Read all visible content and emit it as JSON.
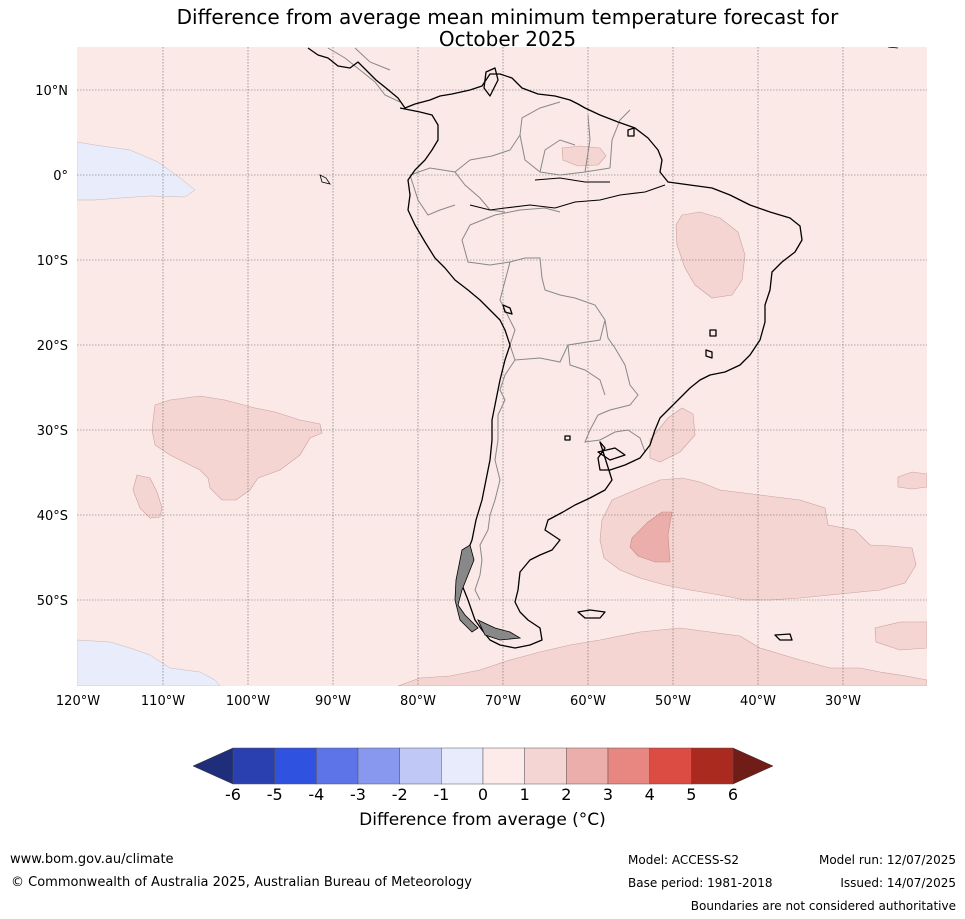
{
  "title": {
    "line1": "Difference from average mean minimum temperature forecast for",
    "line2": "October 2025"
  },
  "map": {
    "lat_labels": [
      "10°N",
      "0°",
      "10°S",
      "20°S",
      "30°S",
      "40°S",
      "50°S"
    ],
    "lon_labels": [
      "120°W",
      "110°W",
      "100°W",
      "90°W",
      "80°W",
      "70°W",
      "60°W",
      "50°W",
      "40°W",
      "30°W"
    ],
    "background_color": "#fbe9e7",
    "anomaly_regions": [
      {
        "name": "Eastern Brazil warm area",
        "category": "1 to 2",
        "color": "#f4d5d2"
      },
      {
        "name": "Southern Atlantic warm area",
        "category": "1 to 2",
        "color": "#f4d5d2"
      },
      {
        "name": "Southern Atlantic core",
        "category": "2 to 3",
        "color": "#ebaeaa"
      },
      {
        "name": "Southeast Pacific warm area",
        "category": "1 to 2",
        "color": "#f4d5d2"
      },
      {
        "name": "Equatorial Pacific cool area",
        "category": "-1 to 0",
        "color": "#e8ecfb"
      },
      {
        "name": "South Pacific cool area",
        "category": "-1 to 0",
        "color": "#e8ecfb"
      }
    ]
  },
  "colorbar": {
    "ticks": [
      "-6",
      "-5",
      "-4",
      "-3",
      "-2",
      "-1",
      "0",
      "1",
      "2",
      "3",
      "4",
      "5",
      "6"
    ],
    "colors": [
      "#2a3fb0",
      "#2f52e0",
      "#5d74e8",
      "#8898ee",
      "#c0c8f5",
      "#e8ebfb",
      "#fcebe9",
      "#f4d5d3",
      "#ebaeaa",
      "#e88782",
      "#dc4c42",
      "#ab2a20"
    ],
    "under_color": "#1f2e7a",
    "over_color": "#701d18",
    "label": "Difference from average (°C)"
  },
  "footer": {
    "website": "www.bom.gov.au/climate",
    "copyright": "© Commonwealth of Australia 2025, Australian Bureau of Meteorology",
    "model": "Model: ACCESS-S2",
    "base_period": "Base period: 1981-2018",
    "model_run": "Model run: 12/07/2025",
    "issued": "Issued: 14/07/2025",
    "disclaimer": "Boundaries are not considered authoritative"
  }
}
